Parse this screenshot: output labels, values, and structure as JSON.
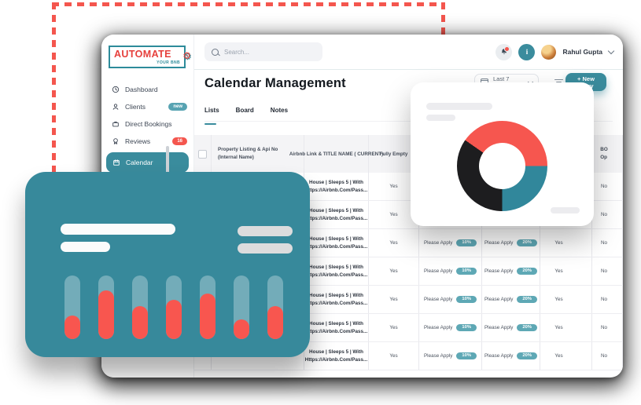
{
  "page": {
    "logo": {
      "title": "AUTOMATE",
      "subtitle": "YOUR BNB"
    },
    "topbar": {
      "search_placeholder": "Search...",
      "user_name": "Rahul Gupta"
    },
    "sidebar": [
      {
        "label": "Dashboard"
      },
      {
        "label": "Clients",
        "badge": "new"
      },
      {
        "label": "Direct Bookings"
      },
      {
        "label": "Reviews",
        "badge": "16"
      },
      {
        "label": "Calendar"
      }
    ],
    "header": {
      "title": "Calendar Management",
      "date_range": "Last 7 Days",
      "new_entry": "+ New Entry"
    },
    "tabs": {
      "lists": "Lists",
      "board": "Board",
      "notes": "Notes"
    },
    "table": {
      "headers": {
        "property_line1": "Property Listing & Api No",
        "property_line2": "(Internal Name)",
        "airbnb": "Airbnb Link & TITLE NAME ( CURRENT)",
        "fully_empty": "Fully Empty",
        "bo_line1": "BO",
        "bo_line2": "Op"
      },
      "rows": [
        {
          "listing_line1": "House | Sleeps 5 | With",
          "listing_line2": "Https://Airbnb.Com/Pass...",
          "fully_empty": "Yes",
          "discount1_label": "",
          "discount1_value": "",
          "discount2_label": "",
          "discount2_value": "",
          "flag1": "",
          "flag2": "No"
        },
        {
          "listing_line1": "House | Sleeps 5 | With",
          "listing_line2": "Https://Airbnb.Com/Pass...",
          "fully_empty": "Yes",
          "discount1_label": "",
          "discount1_value": "",
          "discount2_label": "",
          "discount2_value": "",
          "flag1": "",
          "flag2": "No"
        },
        {
          "listing_line1": "House | Sleeps 5 | With",
          "listing_line2": "Https://Airbnb.Com/Pass...",
          "fully_empty": "Yes",
          "discount1_label": "Please Apply",
          "discount1_value": "10%",
          "discount2_label": "Please Apply",
          "discount2_value": "20%",
          "flag1": "Yes",
          "flag2": "No"
        },
        {
          "listing_line1": "House | Sleeps 5 | With",
          "listing_line2": "Https://Airbnb.Com/Pass...",
          "fully_empty": "Yes",
          "discount1_label": "Please Apply",
          "discount1_value": "10%",
          "discount2_label": "Please Apply",
          "discount2_value": "20%",
          "flag1": "Yes",
          "flag2": "No"
        },
        {
          "listing_line1": "House | Sleeps 5 | With",
          "listing_line2": "Https://Airbnb.Com/Pass...",
          "fully_empty": "Yes",
          "discount1_label": "Please Apply",
          "discount1_value": "10%",
          "discount2_label": "Please Apply",
          "discount2_value": "20%",
          "flag1": "Yes",
          "flag2": "No"
        },
        {
          "listing_line1": "House | Sleeps 5 | With",
          "listing_line2": "Https://Airbnb.Com/Pass...",
          "fully_empty": "Yes",
          "discount1_label": "Please Apply",
          "discount1_value": "10%",
          "discount2_label": "Please Apply",
          "discount2_value": "20%",
          "flag1": "Yes",
          "flag2": "No"
        },
        {
          "listing_line1": "House | Sleeps 5 | With",
          "listing_line2": "Https://Airbnb.Com/Pass...",
          "fully_empty": "Yes",
          "discount1_label": "Please Apply",
          "discount1_value": "10%",
          "discount2_label": "Please Apply",
          "discount2_value": "20%",
          "flag1": "Yes",
          "flag2": "No"
        }
      ]
    },
    "colors": {
      "accent_teal": "#3a8c9d",
      "accent_red": "#f4564e",
      "badge_teal": "#5ea8b5",
      "header_gray": "#f4f4f6"
    }
  },
  "chart_data": [
    {
      "type": "pie",
      "title": "",
      "donut_hole_ratio": 0.5,
      "start_deg": 305,
      "segments": [
        {
          "label": "segment-red",
          "color": "#F6564F",
          "deg": 145
        },
        {
          "label": "segment-teal",
          "color": "#31879B",
          "deg": 90
        },
        {
          "label": "segment-dark",
          "color": "#1D1D1F",
          "deg": 125
        }
      ]
    },
    {
      "type": "bar",
      "title": "",
      "values": [
        30,
        62,
        42,
        50,
        58,
        25,
        42
      ],
      "ylim": [
        0,
        81
      ],
      "track_color": "rgba(255,255,255,0.30)",
      "fill_color": "#F8564F"
    }
  ]
}
